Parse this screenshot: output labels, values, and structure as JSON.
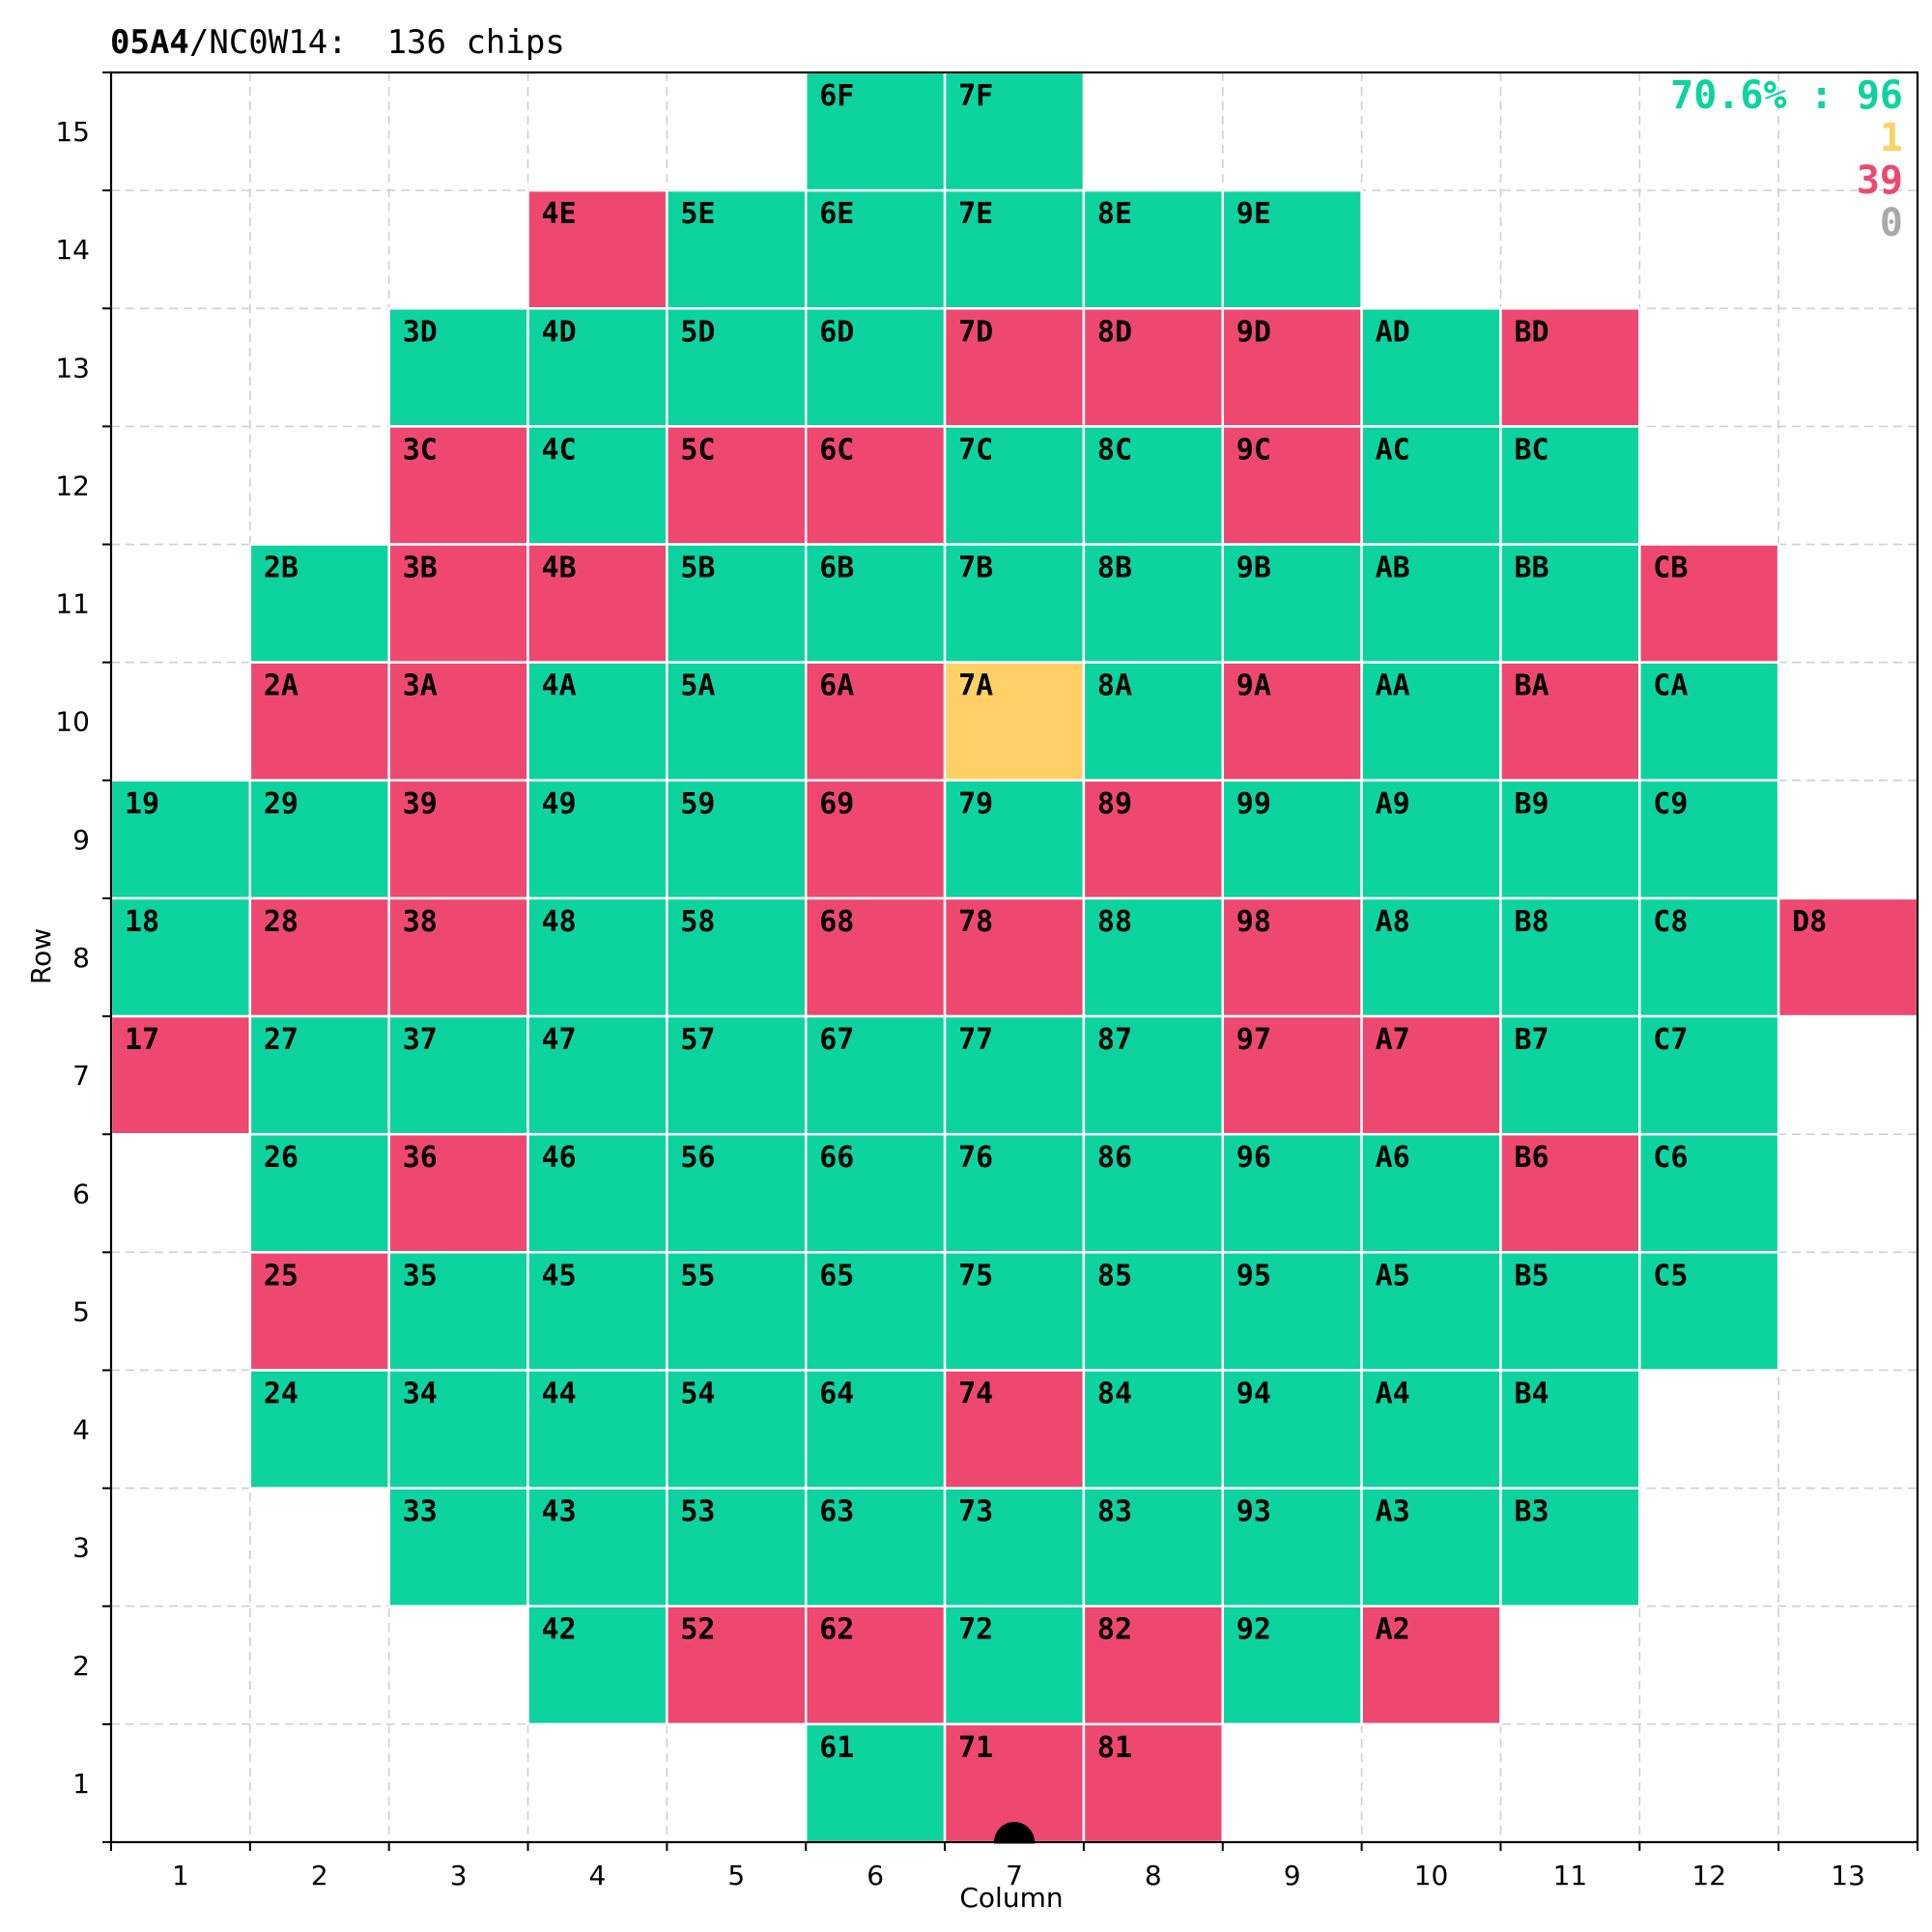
{
  "header": {
    "lot": "05A4",
    "wafer": "/NC0W14:  136 chips"
  },
  "legend": {
    "pass_text": "70.6% : 96",
    "marginal_text": "1",
    "fail_text": "39",
    "untested_text": "0"
  },
  "colors": {
    "pass": "#0dd39f",
    "marginal": "#ffd066",
    "fail": "#ee4870",
    "untested": "#a9a9a9",
    "grid": "#d0d0d0",
    "axis": "#000000"
  },
  "chart_data": {
    "type": "heatmap",
    "title": "05A4/NC0W14:  136 chips",
    "xlabel": "Column",
    "ylabel": "Row",
    "xlim": [
      0.5,
      13.5
    ],
    "ylim": [
      0.5,
      15.5
    ],
    "xticks": [
      1,
      2,
      3,
      4,
      5,
      6,
      7,
      8,
      9,
      10,
      11,
      12,
      13
    ],
    "yticks": [
      1,
      2,
      3,
      4,
      5,
      6,
      7,
      8,
      9,
      10,
      11,
      12,
      13,
      14,
      15
    ],
    "grid": true,
    "legend_placement": "top-right",
    "notch": {
      "column": 7,
      "row": 0.5
    },
    "status_codes": {
      "P": "pass",
      "M": "marginal",
      "F": "fail"
    },
    "rows": [
      {
        "row": 15,
        "start": 6,
        "chips": [
          "6F",
          "7F"
        ],
        "status": "PP"
      },
      {
        "row": 14,
        "start": 4,
        "chips": [
          "4E",
          "5E",
          "6E",
          "7E",
          "8E",
          "9E"
        ],
        "status": "FPPPPP"
      },
      {
        "row": 13,
        "start": 3,
        "chips": [
          "3D",
          "4D",
          "5D",
          "6D",
          "7D",
          "8D",
          "9D",
          "AD",
          "BD"
        ],
        "status": "PPPPFFFPF"
      },
      {
        "row": 12,
        "start": 3,
        "chips": [
          "3C",
          "4C",
          "5C",
          "6C",
          "7C",
          "8C",
          "9C",
          "AC",
          "BC"
        ],
        "status": "FPFFPPFPP"
      },
      {
        "row": 11,
        "start": 2,
        "chips": [
          "2B",
          "3B",
          "4B",
          "5B",
          "6B",
          "7B",
          "8B",
          "9B",
          "AB",
          "BB",
          "CB"
        ],
        "status": "PFFPPPPPPPF"
      },
      {
        "row": 10,
        "start": 2,
        "chips": [
          "2A",
          "3A",
          "4A",
          "5A",
          "6A",
          "7A",
          "8A",
          "9A",
          "AA",
          "BA",
          "CA"
        ],
        "status": "FFPPFMPFPFP"
      },
      {
        "row": 9,
        "start": 1,
        "chips": [
          "19",
          "29",
          "39",
          "49",
          "59",
          "69",
          "79",
          "89",
          "99",
          "A9",
          "B9",
          "C9"
        ],
        "status": "PPFPPFPFPPPP"
      },
      {
        "row": 8,
        "start": 1,
        "chips": [
          "18",
          "28",
          "38",
          "48",
          "58",
          "68",
          "78",
          "88",
          "98",
          "A8",
          "B8",
          "C8",
          "D8"
        ],
        "status": "PFFPPFFPFPPPF"
      },
      {
        "row": 7,
        "start": 1,
        "chips": [
          "17",
          "27",
          "37",
          "47",
          "57",
          "67",
          "77",
          "87",
          "97",
          "A7",
          "B7",
          "C7"
        ],
        "status": "FPPPPPPPFFPP"
      },
      {
        "row": 6,
        "start": 2,
        "chips": [
          "26",
          "36",
          "46",
          "56",
          "66",
          "76",
          "86",
          "96",
          "A6",
          "B6",
          "C6"
        ],
        "status": "PFPPPPPPPFP"
      },
      {
        "row": 5,
        "start": 2,
        "chips": [
          "25",
          "35",
          "45",
          "55",
          "65",
          "75",
          "85",
          "95",
          "A5",
          "B5",
          "C5"
        ],
        "status": "FPPPPPPPPPP"
      },
      {
        "row": 4,
        "start": 2,
        "chips": [
          "24",
          "34",
          "44",
          "54",
          "64",
          "74",
          "84",
          "94",
          "A4",
          "B4"
        ],
        "status": "PPPPPFPPPP"
      },
      {
        "row": 3,
        "start": 3,
        "chips": [
          "33",
          "43",
          "53",
          "63",
          "73",
          "83",
          "93",
          "A3",
          "B3"
        ],
        "status": "PPPPPPPPP"
      },
      {
        "row": 2,
        "start": 4,
        "chips": [
          "42",
          "52",
          "62",
          "72",
          "82",
          "92",
          "A2"
        ],
        "status": "PFFPFPF"
      },
      {
        "row": 1,
        "start": 6,
        "chips": [
          "61",
          "71",
          "81"
        ],
        "status": "PFF"
      }
    ]
  }
}
